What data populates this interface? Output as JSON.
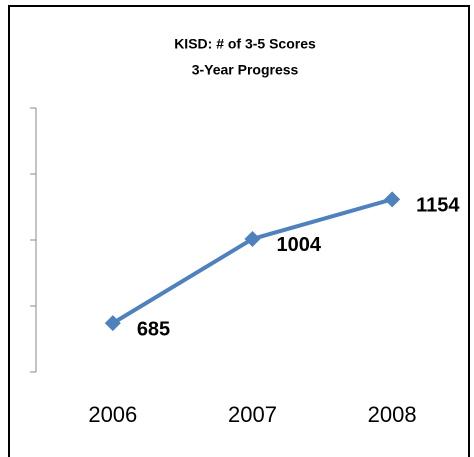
{
  "chart_data": {
    "type": "line",
    "title": "KISD: # of 3-5 Scores",
    "subtitle": "3-Year Progress",
    "categories": [
      "2006",
      "2007",
      "2008"
    ],
    "series": [
      {
        "name": "3-5 Scores",
        "color": "#4f81bd",
        "values": [
          685,
          1004,
          1154
        ]
      }
    ],
    "ylim": [
      500,
      1500
    ],
    "yticks": [
      500,
      750,
      1000,
      1250,
      1500
    ]
  }
}
